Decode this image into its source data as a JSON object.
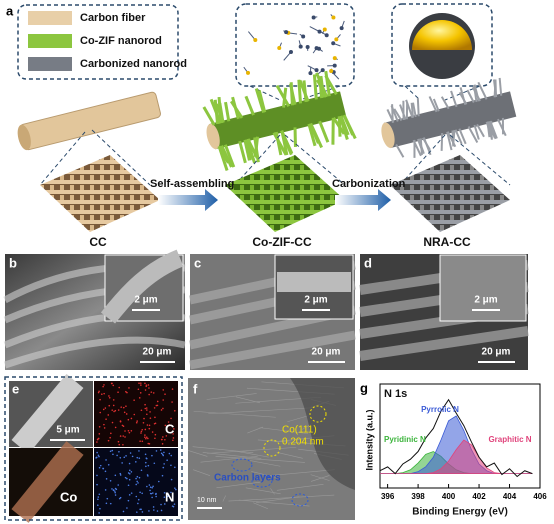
{
  "panel_labels": [
    "a",
    "b",
    "c",
    "d",
    "e",
    "f",
    "g"
  ],
  "legend": [
    "Carbon fiber",
    "Co-ZIF nanorod",
    "Carbonized nanorod"
  ],
  "samples": [
    "CC",
    "Co-ZIF-CC",
    "NRA-CC"
  ],
  "steps": [
    "Self-assembling",
    "Carbonization"
  ],
  "sem": {
    "b": {
      "inset_scale": "2 μm",
      "scale": "20 μm"
    },
    "c": {
      "inset_scale": "2 μm",
      "scale": "20 μm"
    },
    "d": {
      "inset_scale": "2 μm",
      "scale": "20 μm"
    }
  },
  "eds": {
    "scale": "5 μm",
    "maps": [
      "C",
      "Co",
      "N"
    ]
  },
  "tem": {
    "plane": "Co(111)",
    "spacing": "0.204 nm",
    "annotation": "Carbon layers",
    "scale": "10 nm"
  },
  "chart_data": {
    "type": "line",
    "title": "N 1s",
    "xlabel": "Binding Energy (eV)",
    "ylabel": "Intensity (a.u.)",
    "x": [
      395.5,
      396,
      396.5,
      397,
      397.5,
      398,
      398.5,
      399,
      399.5,
      400,
      400.5,
      401,
      401.5,
      402,
      402.5,
      403,
      403.5,
      404,
      404.5,
      405,
      405.5
    ],
    "values": [
      18,
      22,
      15,
      25,
      30,
      38,
      52,
      62,
      80,
      92,
      78,
      65,
      48,
      32,
      22,
      26,
      14,
      20,
      12,
      18,
      15
    ],
    "color": "#111111",
    "series": [
      {
        "name": "Pyridinic N",
        "color": "#3cb43c",
        "values": [
          15,
          15,
          15,
          16,
          19,
          26,
          35,
          38,
          33,
          25,
          19,
          16,
          15,
          15,
          15,
          15,
          15,
          15,
          15,
          15,
          15
        ]
      },
      {
        "name": "Pyrrolic N",
        "color": "#3b5bd6",
        "values": [
          15,
          15,
          15,
          15,
          15,
          17,
          22,
          32,
          50,
          70,
          75,
          60,
          40,
          25,
          18,
          15,
          15,
          15,
          15,
          15,
          15
        ]
      },
      {
        "name": "Graphitic N",
        "color": "#e0447c",
        "values": [
          15,
          15,
          15,
          15,
          15,
          15,
          15,
          16,
          20,
          28,
          40,
          50,
          45,
          32,
          21,
          16,
          15,
          15,
          15,
          15,
          15
        ]
      }
    ],
    "xlim": [
      395.5,
      406
    ],
    "xticks": [
      396,
      398,
      400,
      402,
      404,
      406
    ],
    "ylim": [
      0,
      100
    ]
  }
}
